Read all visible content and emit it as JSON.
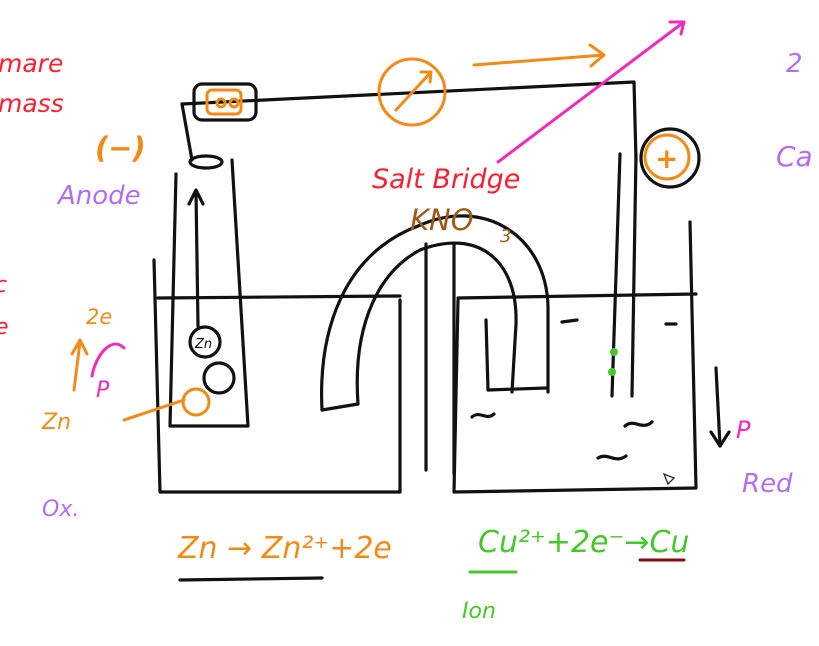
{
  "notes": {
    "left_top_1": "mare",
    "left_top_2": "mass",
    "anode_sign": "(−)",
    "anode_label": "Anode",
    "cathode_sign": "+",
    "bridge_label": "Salt Bridge",
    "bridge_compound": "KNO",
    "bridge_subscript": "3",
    "electrons": "2e",
    "left_ion": "Zn",
    "left_atom": "Zn",
    "left_mark": "P",
    "ox_label": "Ox.",
    "right_mark": "P",
    "red_label": "Red",
    "right_top_1": "2",
    "right_top_2": "Ca",
    "anode_eq": "Zn → Zn²⁺+2e",
    "cathode_eq": "Cu²⁺+2e⁻→Cu",
    "ion_label": "Ion",
    "left_edge_1": "c",
    "left_edge_2": "e"
  },
  "colors": {
    "ink": "#111111",
    "anode": "#f28a16",
    "note_red": "#ff1f2f",
    "arrow": "#f02bb8",
    "cathode": "#46c82a",
    "label_purple": "#b46cf2",
    "salt": "#a05a18",
    "underline": "#8b0a12"
  }
}
